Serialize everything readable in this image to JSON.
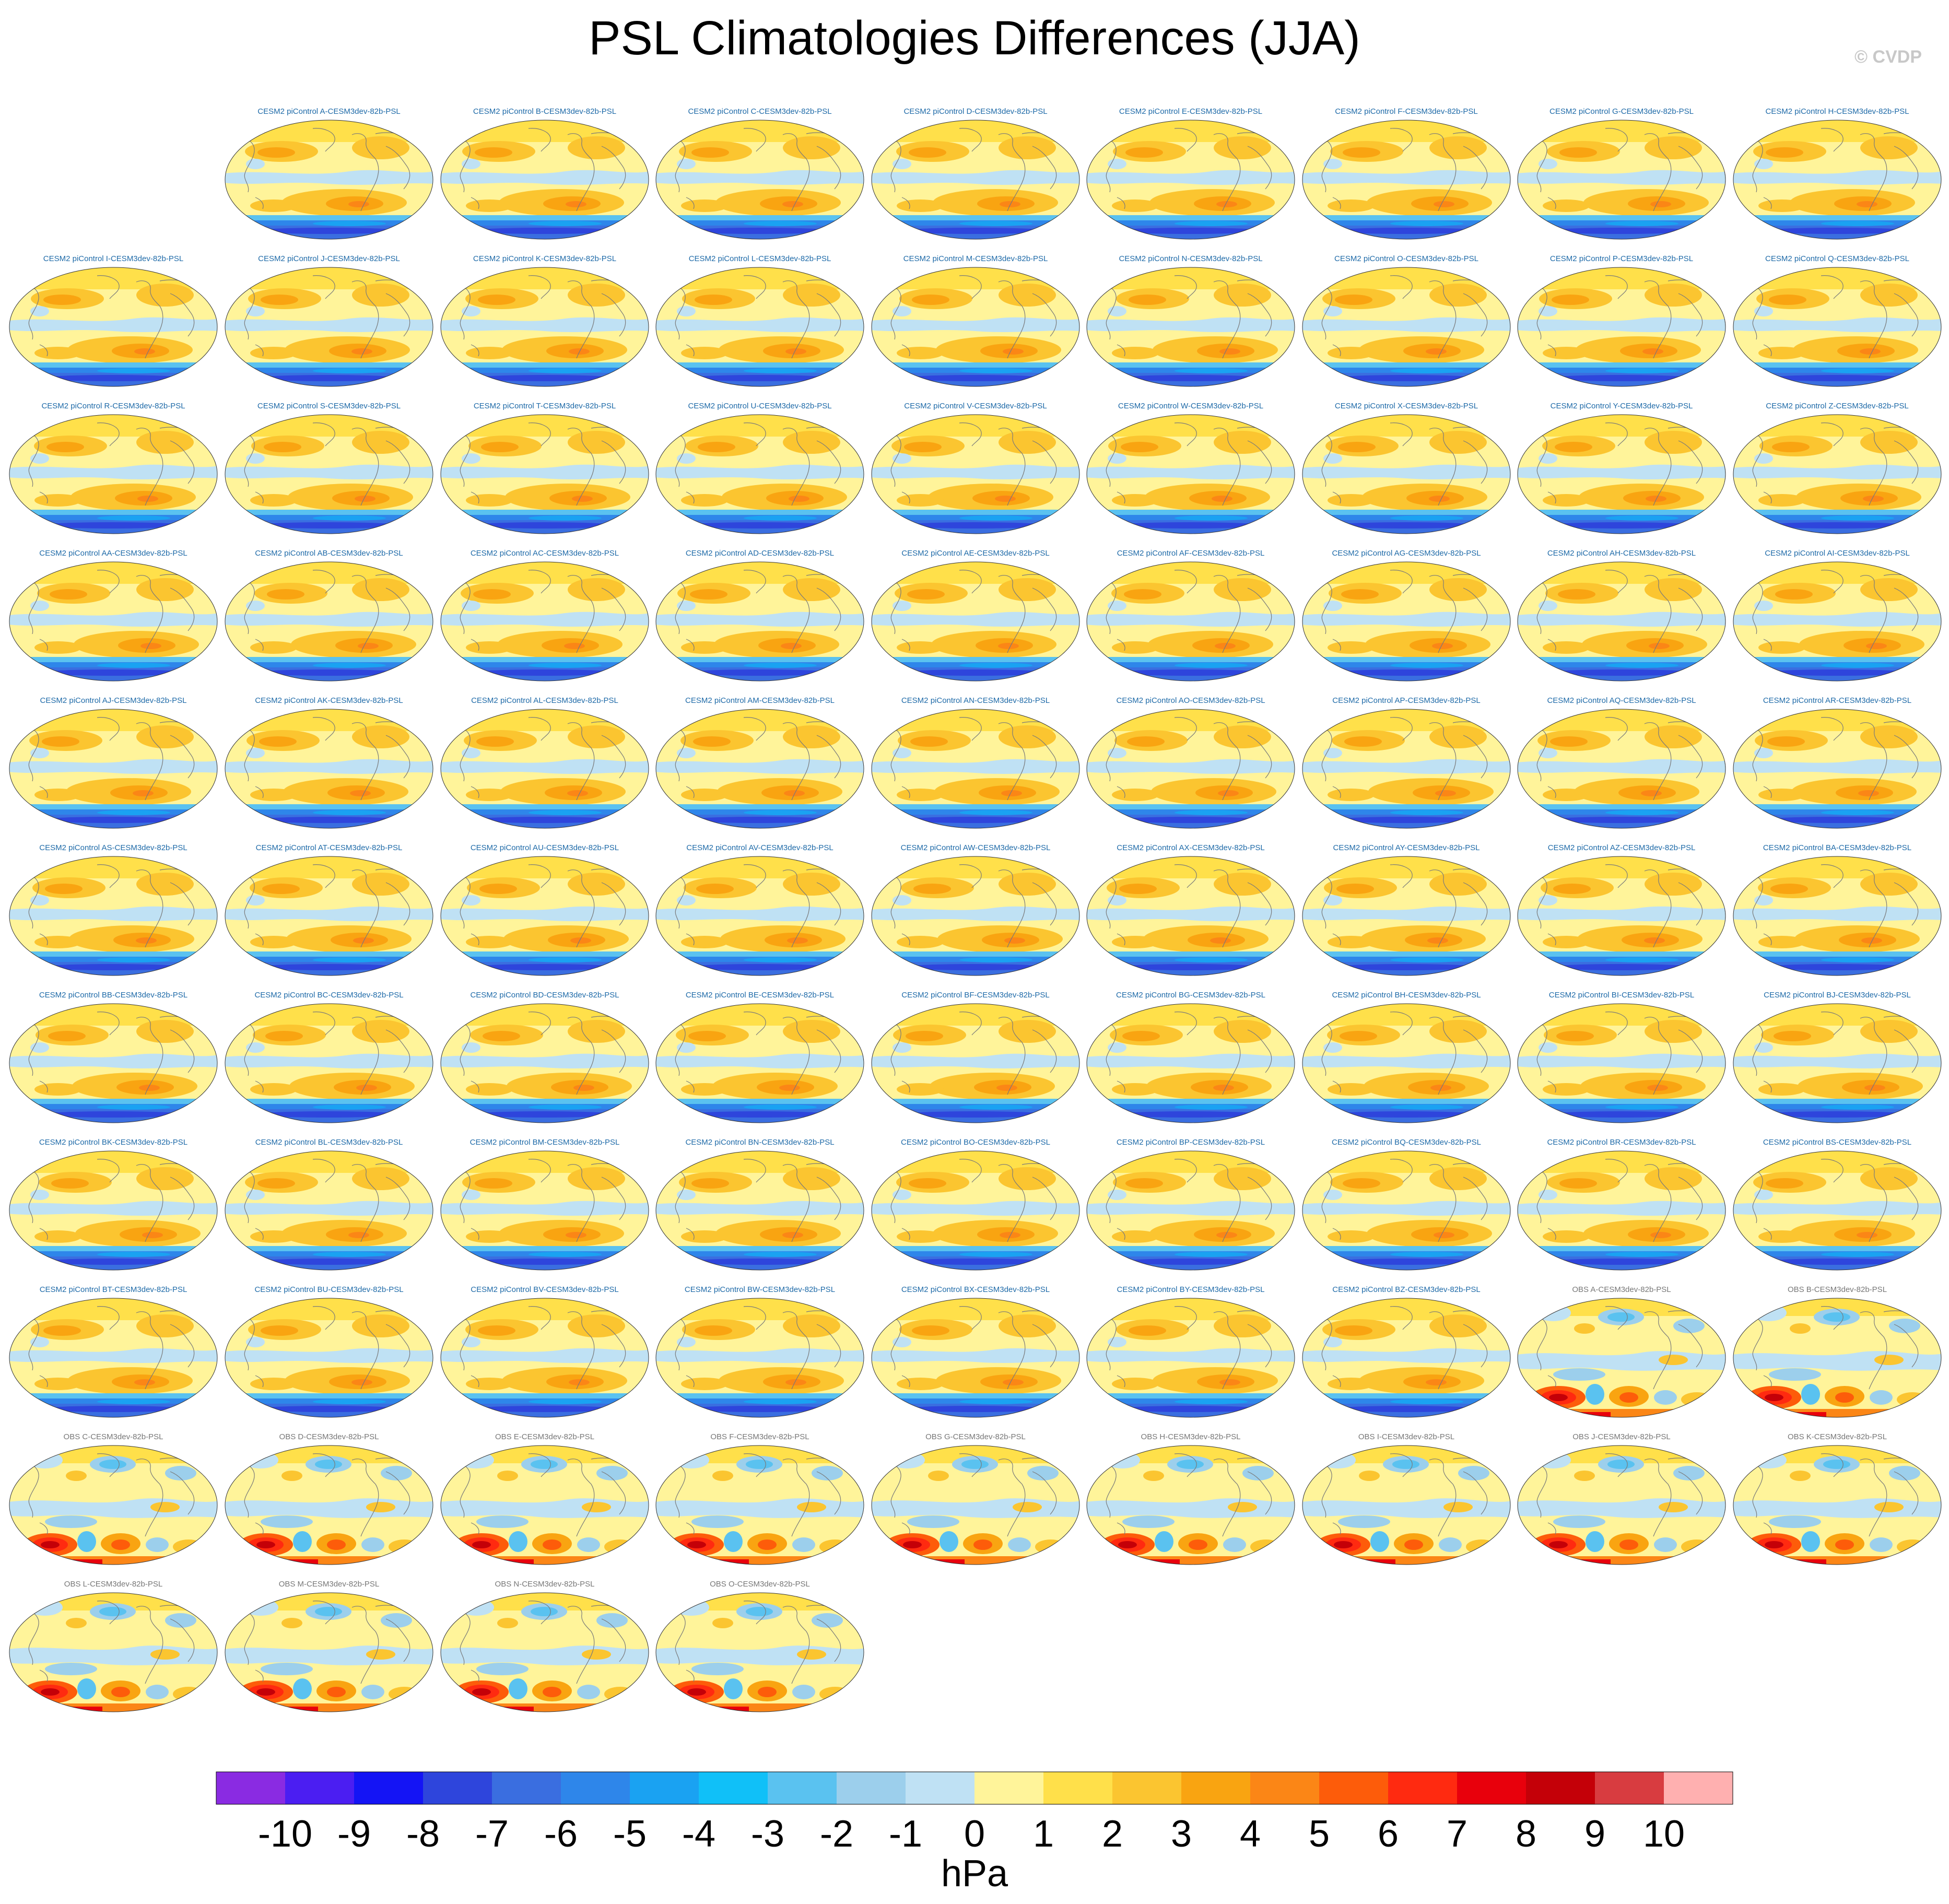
{
  "title": "PSL Climatologies Differences (JJA)",
  "credit": "© CVDP",
  "chart_data": {
    "type": "heatmap",
    "variable": "PSL",
    "season": "JJA",
    "model_suffix": "-CESM3dev-82b-PSL",
    "model_panels": [
      "CESM2 piControl A-CESM3dev-82b-PSL",
      "CESM2 piControl B-CESM3dev-82b-PSL",
      "CESM2 piControl C-CESM3dev-82b-PSL",
      "CESM2 piControl D-CESM3dev-82b-PSL",
      "CESM2 piControl E-CESM3dev-82b-PSL",
      "CESM2 piControl F-CESM3dev-82b-PSL",
      "CESM2 piControl G-CESM3dev-82b-PSL",
      "CESM2 piControl H-CESM3dev-82b-PSL",
      "CESM2 piControl I-CESM3dev-82b-PSL",
      "CESM2 piControl J-CESM3dev-82b-PSL",
      "CESM2 piControl K-CESM3dev-82b-PSL",
      "CESM2 piControl L-CESM3dev-82b-PSL",
      "CESM2 piControl M-CESM3dev-82b-PSL",
      "CESM2 piControl N-CESM3dev-82b-PSL",
      "CESM2 piControl O-CESM3dev-82b-PSL",
      "CESM2 piControl P-CESM3dev-82b-PSL",
      "CESM2 piControl Q-CESM3dev-82b-PSL",
      "CESM2 piControl R-CESM3dev-82b-PSL",
      "CESM2 piControl S-CESM3dev-82b-PSL",
      "CESM2 piControl T-CESM3dev-82b-PSL",
      "CESM2 piControl U-CESM3dev-82b-PSL",
      "CESM2 piControl V-CESM3dev-82b-PSL",
      "CESM2 piControl W-CESM3dev-82b-PSL",
      "CESM2 piControl X-CESM3dev-82b-PSL",
      "CESM2 piControl Y-CESM3dev-82b-PSL",
      "CESM2 piControl Z-CESM3dev-82b-PSL",
      "CESM2 piControl AA-CESM3dev-82b-PSL",
      "CESM2 piControl AB-CESM3dev-82b-PSL",
      "CESM2 piControl AC-CESM3dev-82b-PSL",
      "CESM2 piControl AD-CESM3dev-82b-PSL",
      "CESM2 piControl AE-CESM3dev-82b-PSL",
      "CESM2 piControl AF-CESM3dev-82b-PSL",
      "CESM2 piControl AG-CESM3dev-82b-PSL",
      "CESM2 piControl AH-CESM3dev-82b-PSL",
      "CESM2 piControl AI-CESM3dev-82b-PSL",
      "CESM2 piControl AJ-CESM3dev-82b-PSL",
      "CESM2 piControl AK-CESM3dev-82b-PSL",
      "CESM2 piControl AL-CESM3dev-82b-PSL",
      "CESM2 piControl AM-CESM3dev-82b-PSL",
      "CESM2 piControl AN-CESM3dev-82b-PSL",
      "CESM2 piControl AO-CESM3dev-82b-PSL",
      "CESM2 piControl AP-CESM3dev-82b-PSL",
      "CESM2 piControl AQ-CESM3dev-82b-PSL",
      "CESM2 piControl AR-CESM3dev-82b-PSL",
      "CESM2 piControl AS-CESM3dev-82b-PSL",
      "CESM2 piControl AT-CESM3dev-82b-PSL",
      "CESM2 piControl AU-CESM3dev-82b-PSL",
      "CESM2 piControl AV-CESM3dev-82b-PSL",
      "CESM2 piControl AW-CESM3dev-82b-PSL",
      "CESM2 piControl AX-CESM3dev-82b-PSL",
      "CESM2 piControl AY-CESM3dev-82b-PSL",
      "CESM2 piControl AZ-CESM3dev-82b-PSL",
      "CESM2 piControl BA-CESM3dev-82b-PSL",
      "CESM2 piControl BB-CESM3dev-82b-PSL",
      "CESM2 piControl BC-CESM3dev-82b-PSL",
      "CESM2 piControl BD-CESM3dev-82b-PSL",
      "CESM2 piControl BE-CESM3dev-82b-PSL",
      "CESM2 piControl BF-CESM3dev-82b-PSL",
      "CESM2 piControl BG-CESM3dev-82b-PSL",
      "CESM2 piControl BH-CESM3dev-82b-PSL",
      "CESM2 piControl BI-CESM3dev-82b-PSL",
      "CESM2 piControl BJ-CESM3dev-82b-PSL",
      "CESM2 piControl BK-CESM3dev-82b-PSL",
      "CESM2 piControl BL-CESM3dev-82b-PSL",
      "CESM2 piControl BM-CESM3dev-82b-PSL",
      "CESM2 piControl BN-CESM3dev-82b-PSL",
      "CESM2 piControl BO-CESM3dev-82b-PSL",
      "CESM2 piControl BP-CESM3dev-82b-PSL",
      "CESM2 piControl BQ-CESM3dev-82b-PSL",
      "CESM2 piControl BR-CESM3dev-82b-PSL",
      "CESM2 piControl BS-CESM3dev-82b-PSL",
      "CESM2 piControl BT-CESM3dev-82b-PSL",
      "CESM2 piControl BU-CESM3dev-82b-PSL",
      "CESM2 piControl BV-CESM3dev-82b-PSL",
      "CESM2 piControl BW-CESM3dev-82b-PSL",
      "CESM2 piControl BX-CESM3dev-82b-PSL",
      "CESM2 piControl BY-CESM3dev-82b-PSL",
      "CESM2 piControl BZ-CESM3dev-82b-PSL"
    ],
    "obs_panels": [
      "OBS A-CESM3dev-82b-PSL",
      "OBS B-CESM3dev-82b-PSL",
      "OBS C-CESM3dev-82b-PSL",
      "OBS D-CESM3dev-82b-PSL",
      "OBS E-CESM3dev-82b-PSL",
      "OBS F-CESM3dev-82b-PSL",
      "OBS G-CESM3dev-82b-PSL",
      "OBS H-CESM3dev-82b-PSL",
      "OBS I-CESM3dev-82b-PSL",
      "OBS J-CESM3dev-82b-PSL",
      "OBS K-CESM3dev-82b-PSL",
      "OBS L-CESM3dev-82b-PSL",
      "OBS M-CESM3dev-82b-PSL",
      "OBS N-CESM3dev-82b-PSL",
      "OBS O-CESM3dev-82b-PSL"
    ],
    "colorbar": {
      "label": "hPa",
      "ticks": [
        "-10",
        "-9",
        "-8",
        "-7",
        "-6",
        "-5",
        "-4",
        "-3",
        "-2",
        "-1",
        "0",
        "1",
        "2",
        "3",
        "4",
        "5",
        "6",
        "7",
        "8",
        "9",
        "10"
      ],
      "colors": [
        "#8a2be2",
        "#4b1ef2",
        "#1414f5",
        "#2e45dc",
        "#3a6ee0",
        "#2e86ea",
        "#1aa2f2",
        "#10c0f8",
        "#5ac2f0",
        "#9ccfec",
        "#bfe1f4",
        "#fff49a",
        "#ffe04a",
        "#fbc530",
        "#f9a411",
        "#fb8616",
        "#fd5c0a",
        "#ff2a10",
        "#e8000c",
        "#c40008",
        "#d83c40",
        "#ffb0b0"
      ]
    }
  }
}
